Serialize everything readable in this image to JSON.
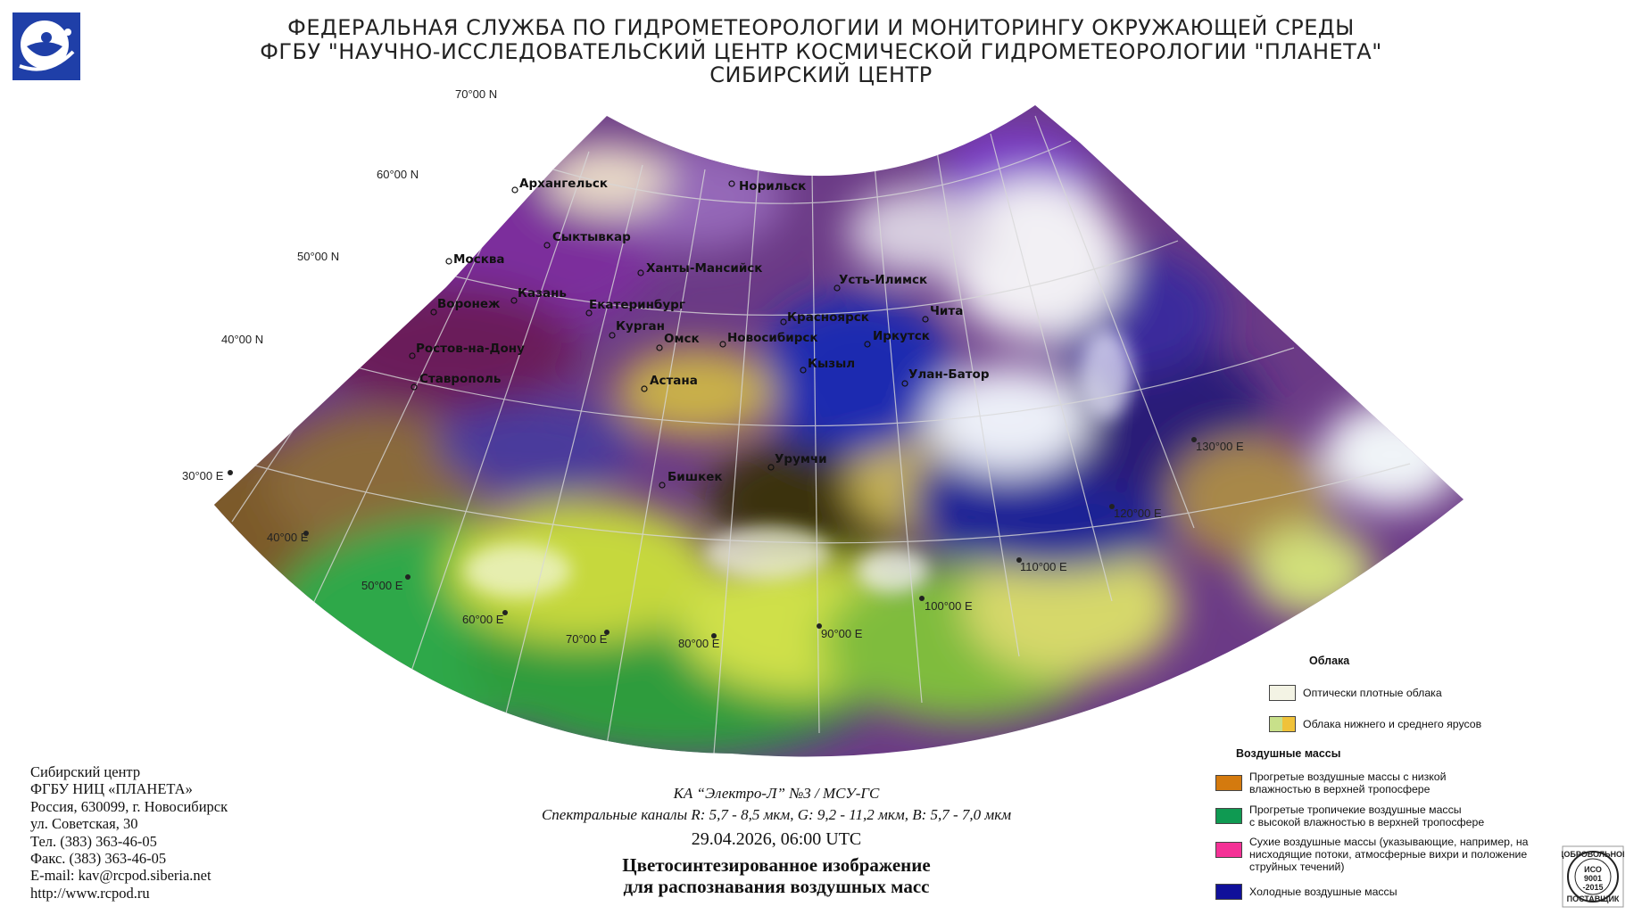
{
  "header": {
    "line1": "ФЕДЕРАЛЬНАЯ СЛУЖБА ПО ГИДРОМЕТЕОРОЛОГИИ И МОНИТОРИНГУ ОКРУЖАЮЩЕЙ СРЕДЫ",
    "line2": "ФГБУ \"НАУЧНО-ИССЛЕДОВАТЕЛЬСКИЙ ЦЕНТР КОСМИЧЕСКОЙ ГИДРОМЕТЕОРОЛОГИИ \"ПЛАНЕТА\"",
    "line3": "СИБИРСКИЙ ЦЕНТР"
  },
  "logo": {
    "icon": "planeta-logo-icon",
    "color": "#1f3fa8"
  },
  "map": {
    "lat_labels": [
      "70°00 N",
      "60°00 N",
      "50°00 N",
      "40°00 N"
    ],
    "lon_labels": [
      "30°00 E",
      "40°00 E",
      "50°00 E",
      "60°00 E",
      "70°00 E",
      "80°00 E",
      "90°00 E",
      "100°00 E",
      "110°00 E",
      "120°00 E",
      "130°00 E"
    ],
    "cities": [
      "Архангельск",
      "Норильск",
      "Сыктывкар",
      "Москва",
      "Ханты-Мансийск",
      "Усть-Илимск",
      "Казань",
      "Воронеж",
      "Екатеринбург",
      "Красноярск",
      "Чита",
      "Курган",
      "Омск",
      "Новосибирск",
      "Иркутск",
      "Ростов-на-Дону",
      "Кызыл",
      "Улан-Батор",
      "Ставрополь",
      "Астана",
      "Урумчи",
      "Бишкек"
    ]
  },
  "contact": {
    "l1": "Сибирский центр",
    "l2": "ФГБУ НИЦ «ПЛАНЕТА»",
    "l3": "Россия, 630099, г. Новосибирск",
    "l4": "ул. Советская, 30",
    "l5": "Тел. (383) 363-46-05",
    "l6": "Факс. (383) 363-46-05",
    "l7": "E-mail: kav@rcpod.siberia.net",
    "l8": "http://www.rcpod.ru"
  },
  "caption": {
    "satellite": "КА “Электро-Л” №3 / МСУ-ГС",
    "channels": "Спектральные каналы R: 5,7 - 8,5 мкм, G: 9,2 - 11,2 мкм, B: 5,7 - 7,0 мкм",
    "timestamp": "29.04.2026, 06:00 UTC",
    "title1": "Цветосинтезированное изображение",
    "title2": "для распознавания воздушных масс"
  },
  "legend": {
    "clouds_title": "Облака",
    "clouds": [
      {
        "label": "Оптически плотные облака",
        "color": "#f3f3e4"
      },
      {
        "label": "Облака нижнего и среднего ярусов",
        "colors": [
          "#c8e08a",
          "#f0c23a"
        ]
      }
    ],
    "air_title": "Воздушные массы",
    "air": [
      {
        "line1": "Прогретые воздушные массы с низкой",
        "line2": "влажностью в верхней тропосфере",
        "line3": "",
        "color": "#d47a0e"
      },
      {
        "line1": "Прогретые тропичекие воздушные массы",
        "line2": "с высокой влажностью в верхней тропосфере",
        "line3": "",
        "color": "#0f9a52"
      },
      {
        "line1": "Сухие воздушные массы (указывающие, например, на",
        "line2": "нисходящие потоки, атмосферные вихри и положение",
        "line3": "струйных течений)",
        "color": "#f43196"
      },
      {
        "line1": "Холодные воздушные массы",
        "line2": "",
        "line3": "",
        "color": "#10109a"
      }
    ]
  },
  "iso_badge": {
    "top": "ДОБРОВОЛЬНОЕ",
    "mid1": "ИСО",
    "mid2": "9001",
    "mid3": "-2015",
    "bottom": "ПОСТАВЩИК"
  }
}
